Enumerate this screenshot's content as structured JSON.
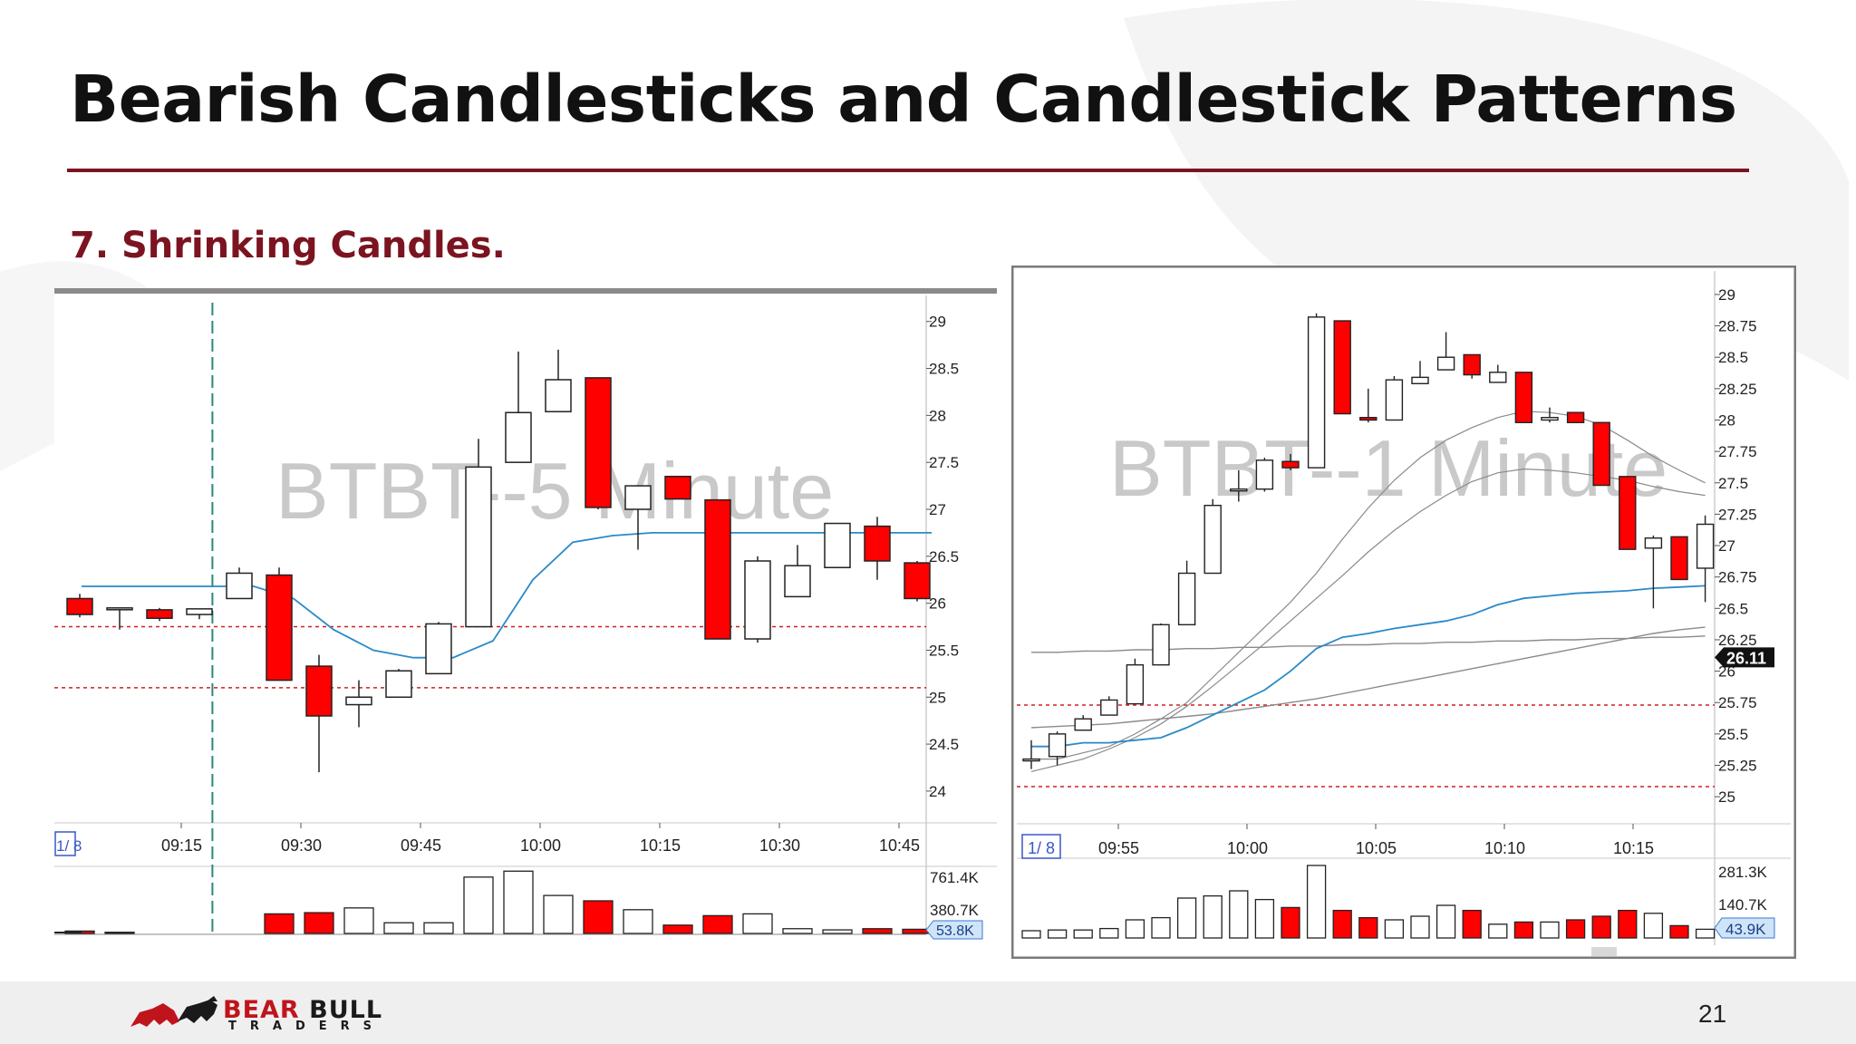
{
  "slide": {
    "title": "Bearish Candlesticks and Candlestick Patterns",
    "subtitle": "7. Shrinking Candles.",
    "page_number": "21",
    "logo": {
      "word1": "BEAR",
      "word2": "BULL",
      "tagline": "TRADERS"
    },
    "colors": {
      "title_rule": "#7b1420",
      "bear_candle": "#ff0000",
      "bull_candle": "#ffffff",
      "ma_blue": "#2a8ac8",
      "support_line": "#d02020"
    }
  },
  "chart_data": [
    {
      "type": "candlestick",
      "watermark": "BTBT--5 Minute",
      "date_label": "1/ 8",
      "x_tick_labels": [
        "09:15",
        "09:30",
        "09:45",
        "10:00",
        "10:15",
        "10:30",
        "10:45"
      ],
      "y_tick_labels": [
        "29",
        "28.5",
        "28",
        "27.5",
        "27",
        "26.5",
        "26",
        "25.5",
        "25",
        "24.5",
        "24"
      ],
      "ylim": [
        23.7,
        29.2
      ],
      "volume_tick_labels": [
        "761.4K",
        "380.7K"
      ],
      "volume_current": "53.8K",
      "session_open_marker": "09:30",
      "support_levels": [
        25.75,
        25.1
      ],
      "candles": [
        {
          "o": 26.05,
          "h": 26.1,
          "l": 25.85,
          "c": 25.88
        },
        {
          "o": 25.95,
          "h": 25.95,
          "l": 25.72,
          "c": 25.95
        },
        {
          "o": 25.93,
          "h": 25.95,
          "l": 25.81,
          "c": 25.84
        },
        {
          "o": 25.88,
          "h": 25.94,
          "l": 25.83,
          "c": 25.94
        },
        {
          "o": 26.05,
          "h": 26.38,
          "l": 26.05,
          "c": 26.32
        },
        {
          "o": 26.3,
          "h": 26.38,
          "l": 25.18,
          "c": 25.18
        },
        {
          "o": 25.33,
          "h": 25.45,
          "l": 24.2,
          "c": 24.8
        },
        {
          "o": 24.92,
          "h": 25.18,
          "l": 24.68,
          "c": 25.0
        },
        {
          "o": 25.0,
          "h": 25.3,
          "l": 25.0,
          "c": 25.28
        },
        {
          "o": 25.25,
          "h": 25.8,
          "l": 25.25,
          "c": 25.78
        },
        {
          "o": 25.75,
          "h": 27.75,
          "l": 25.75,
          "c": 27.45
        },
        {
          "o": 27.5,
          "h": 28.68,
          "l": 27.5,
          "c": 28.03
        },
        {
          "o": 28.04,
          "h": 28.7,
          "l": 28.04,
          "c": 28.38
        },
        {
          "o": 28.4,
          "h": 28.4,
          "l": 27.0,
          "c": 27.02
        },
        {
          "o": 27.0,
          "h": 27.25,
          "l": 26.57,
          "c": 27.25
        },
        {
          "o": 27.35,
          "h": 27.35,
          "l": 27.11,
          "c": 27.11
        },
        {
          "o": 27.1,
          "h": 27.1,
          "l": 25.62,
          "c": 25.62
        },
        {
          "o": 25.62,
          "h": 26.5,
          "l": 25.58,
          "c": 26.45
        },
        {
          "o": 26.07,
          "h": 26.62,
          "l": 26.07,
          "c": 26.4
        },
        {
          "o": 26.38,
          "h": 26.85,
          "l": 26.38,
          "c": 26.85
        },
        {
          "o": 26.82,
          "h": 26.92,
          "l": 26.25,
          "c": 26.45
        },
        {
          "o": 26.43,
          "h": 26.45,
          "l": 26.02,
          "c": 26.05
        }
      ],
      "ma_line": [
        26.18,
        26.18,
        26.18,
        26.18,
        26.18,
        26.05,
        25.72,
        25.5,
        25.42,
        25.42,
        25.6,
        26.25,
        26.65,
        26.72,
        26.75,
        26.75,
        26.75,
        26.75,
        26.75,
        26.75,
        26.75,
        26.75
      ],
      "volume": [
        0.04,
        0.02,
        0.0,
        0.0,
        0.0,
        0.33,
        0.35,
        0.43,
        0.18,
        0.18,
        0.95,
        1.05,
        0.64,
        0.55,
        0.4,
        0.14,
        0.3,
        0.33,
        0.08,
        0.06,
        0.08,
        0.07
      ]
    },
    {
      "type": "candlestick",
      "watermark": "BTBT--1 Minute",
      "date_label": "1/ 8",
      "x_tick_labels": [
        "09:55",
        "10:00",
        "10:05",
        "10:10",
        "10:15"
      ],
      "y_tick_labels": [
        "29",
        "28.75",
        "28.5",
        "28.25",
        "28",
        "27.75",
        "27.5",
        "27.25",
        "27",
        "26.75",
        "26.5",
        "26.25",
        "26",
        "25.75",
        "25.5",
        "25.25",
        "25"
      ],
      "ylim": [
        24.9,
        29.05
      ],
      "volume_tick_labels": [
        "281.3K",
        "140.7K"
      ],
      "volume_current": "43.9K",
      "last_price": "26.11",
      "support_levels": [
        25.73,
        25.08
      ],
      "candles": [
        {
          "o": 25.3,
          "h": 25.45,
          "l": 25.22,
          "c": 25.3
        },
        {
          "o": 25.32,
          "h": 25.52,
          "l": 25.25,
          "c": 25.5
        },
        {
          "o": 25.53,
          "h": 25.65,
          "l": 25.53,
          "c": 25.62
        },
        {
          "o": 25.65,
          "h": 25.8,
          "l": 25.65,
          "c": 25.77
        },
        {
          "o": 25.74,
          "h": 26.1,
          "l": 25.74,
          "c": 26.05
        },
        {
          "o": 26.05,
          "h": 26.38,
          "l": 26.05,
          "c": 26.37
        },
        {
          "o": 26.37,
          "h": 26.88,
          "l": 26.37,
          "c": 26.78
        },
        {
          "o": 26.78,
          "h": 27.37,
          "l": 26.78,
          "c": 27.32
        },
        {
          "o": 27.45,
          "h": 27.6,
          "l": 27.35,
          "c": 27.45
        },
        {
          "o": 27.45,
          "h": 27.7,
          "l": 27.43,
          "c": 27.68
        },
        {
          "o": 27.67,
          "h": 27.73,
          "l": 27.6,
          "c": 27.62
        },
        {
          "o": 27.62,
          "h": 28.85,
          "l": 27.62,
          "c": 28.82
        },
        {
          "o": 28.79,
          "h": 28.79,
          "l": 28.05,
          "c": 28.05
        },
        {
          "o": 28.02,
          "h": 28.25,
          "l": 27.98,
          "c": 28.0
        },
        {
          "o": 28.0,
          "h": 28.35,
          "l": 28.0,
          "c": 28.32
        },
        {
          "o": 28.29,
          "h": 28.47,
          "l": 28.29,
          "c": 28.34
        },
        {
          "o": 28.4,
          "h": 28.7,
          "l": 28.4,
          "c": 28.5
        },
        {
          "o": 28.52,
          "h": 28.52,
          "l": 28.33,
          "c": 28.36
        },
        {
          "o": 28.3,
          "h": 28.44,
          "l": 28.3,
          "c": 28.38
        },
        {
          "o": 28.38,
          "h": 28.38,
          "l": 27.98,
          "c": 27.98
        },
        {
          "o": 28.0,
          "h": 28.1,
          "l": 27.98,
          "c": 28.02
        },
        {
          "o": 28.06,
          "h": 28.06,
          "l": 27.98,
          "c": 27.98
        },
        {
          "o": 27.98,
          "h": 27.98,
          "l": 27.48,
          "c": 27.48
        },
        {
          "o": 27.55,
          "h": 27.55,
          "l": 26.97,
          "c": 26.97
        },
        {
          "o": 26.98,
          "h": 27.08,
          "l": 26.5,
          "c": 27.06
        },
        {
          "o": 27.07,
          "h": 27.07,
          "l": 26.73,
          "c": 26.73
        },
        {
          "o": 26.82,
          "h": 27.24,
          "l": 26.55,
          "c": 27.17
        }
      ],
      "ma_line_blue": [
        25.4,
        25.4,
        25.43,
        25.43,
        25.45,
        25.47,
        25.55,
        25.65,
        25.75,
        25.85,
        26.0,
        26.18,
        26.27,
        26.3,
        26.34,
        26.37,
        26.4,
        26.45,
        26.53,
        26.58,
        26.6,
        26.62,
        26.63,
        26.64,
        26.66,
        26.67,
        26.68
      ],
      "ma_line_gray_fast": [
        25.3,
        25.3,
        25.35,
        25.4,
        25.5,
        25.62,
        25.75,
        25.95,
        26.15,
        26.35,
        26.55,
        26.78,
        27.05,
        27.3,
        27.52,
        27.7,
        27.84,
        27.94,
        28.02,
        28.07,
        28.06,
        28.03,
        27.96,
        27.84,
        27.71,
        27.6,
        27.5
      ],
      "ma_line_gray_slow": [
        25.2,
        25.25,
        25.3,
        25.38,
        25.47,
        25.58,
        25.72,
        25.88,
        26.05,
        26.22,
        26.4,
        26.58,
        26.76,
        26.95,
        27.12,
        27.27,
        27.4,
        27.51,
        27.58,
        27.61,
        27.6,
        27.58,
        27.55,
        27.52,
        27.47,
        27.43,
        27.4
      ],
      "flat_line": [
        26.15,
        26.15,
        26.16,
        26.16,
        26.17,
        26.17,
        26.18,
        26.18,
        26.19,
        26.19,
        26.2,
        26.2,
        26.21,
        26.21,
        26.22,
        26.22,
        26.23,
        26.23,
        26.24,
        26.24,
        26.25,
        26.25,
        26.26,
        26.26,
        26.27,
        26.27,
        26.28
      ],
      "rising_line": [
        25.55,
        25.56,
        25.57,
        25.58,
        25.6,
        25.62,
        25.64,
        25.66,
        25.69,
        25.72,
        25.75,
        25.78,
        25.82,
        25.86,
        25.9,
        25.94,
        25.98,
        26.02,
        26.06,
        26.1,
        26.14,
        26.18,
        26.22,
        26.26,
        26.3,
        26.33,
        26.35
      ],
      "volume": [
        0.1,
        0.11,
        0.11,
        0.13,
        0.25,
        0.28,
        0.55,
        0.58,
        0.65,
        0.53,
        0.42,
        1.0,
        0.38,
        0.28,
        0.25,
        0.3,
        0.45,
        0.38,
        0.19,
        0.22,
        0.22,
        0.25,
        0.3,
        0.38,
        0.34,
        0.17,
        0.12
      ]
    }
  ]
}
